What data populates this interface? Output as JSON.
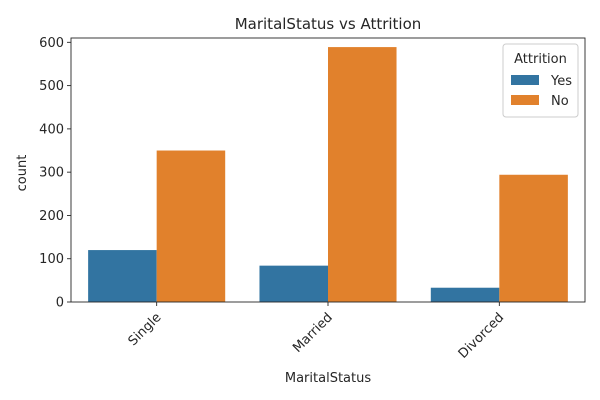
{
  "chart_data": {
    "type": "bar",
    "title": "MaritalStatus vs Attrition",
    "xlabel": "MaritalStatus",
    "ylabel": "count",
    "categories": [
      "Single",
      "Married",
      "Divorced"
    ],
    "series": [
      {
        "name": "Yes",
        "values": [
          120,
          84,
          33
        ],
        "color": "#3274a1"
      },
      {
        "name": "No",
        "values": [
          350,
          589,
          294
        ],
        "color": "#e1812c"
      }
    ],
    "ylim": [
      0,
      610
    ],
    "yticks": [
      0,
      100,
      200,
      300,
      400,
      500,
      600
    ],
    "legend": {
      "title": "Attrition",
      "placement": "top-right"
    },
    "grid": false
  }
}
